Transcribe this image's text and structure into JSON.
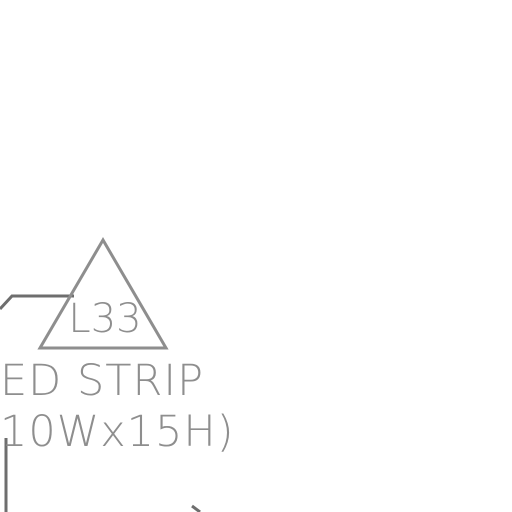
{
  "tag": {
    "label": "L33",
    "shape": "triangle"
  },
  "note": {
    "line1": "ED STRIP",
    "line2": "10Wx15H)"
  },
  "colors": {
    "linework": "#6e6e6e",
    "annotation": "#8e8e8e",
    "background": "#ffffff"
  }
}
